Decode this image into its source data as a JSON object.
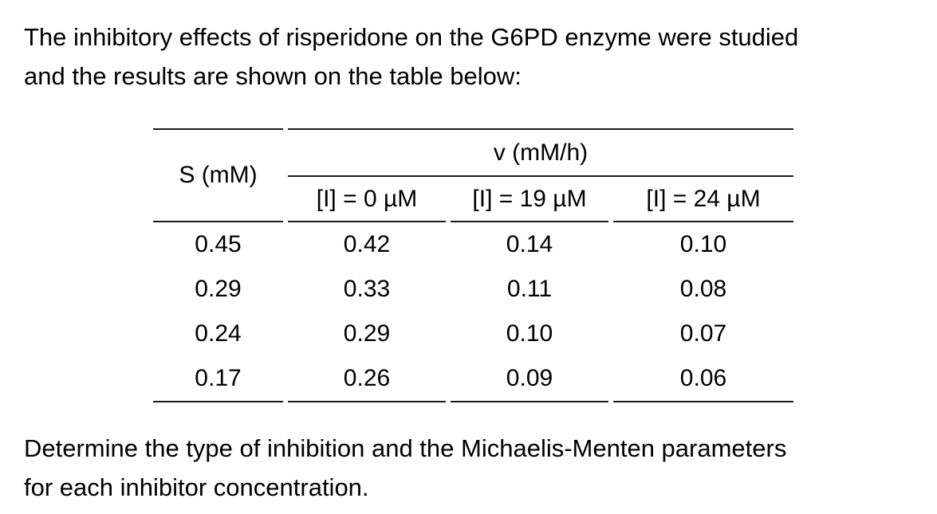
{
  "page": {
    "background": "#ffffff",
    "text_color": "#000000",
    "rule_color": "#1c1c1c"
  },
  "intro": {
    "line1": "The inhibitory effects of risperidone on the G6PD enzyme were studied",
    "line2": "and the results are shown on the table below:"
  },
  "table": {
    "substrate_header": "S (mM)",
    "velocity_span_header": "v (mM/h)",
    "sub_headers": [
      "[I] = 0 µM",
      "[I] = 19 µM",
      "[I] = 24 µM"
    ],
    "rows": [
      [
        "0.45",
        "0.42",
        "0.14",
        "0.10"
      ],
      [
        "0.29",
        "0.33",
        "0.11",
        "0.08"
      ],
      [
        "0.24",
        "0.29",
        "0.10",
        "0.07"
      ],
      [
        "0.17",
        "0.26",
        "0.09",
        "0.06"
      ]
    ]
  },
  "question": {
    "line1": "Determine the type of inhibition and the Michaelis-Menten parameters",
    "line2": "for each inhibitor concentration."
  }
}
